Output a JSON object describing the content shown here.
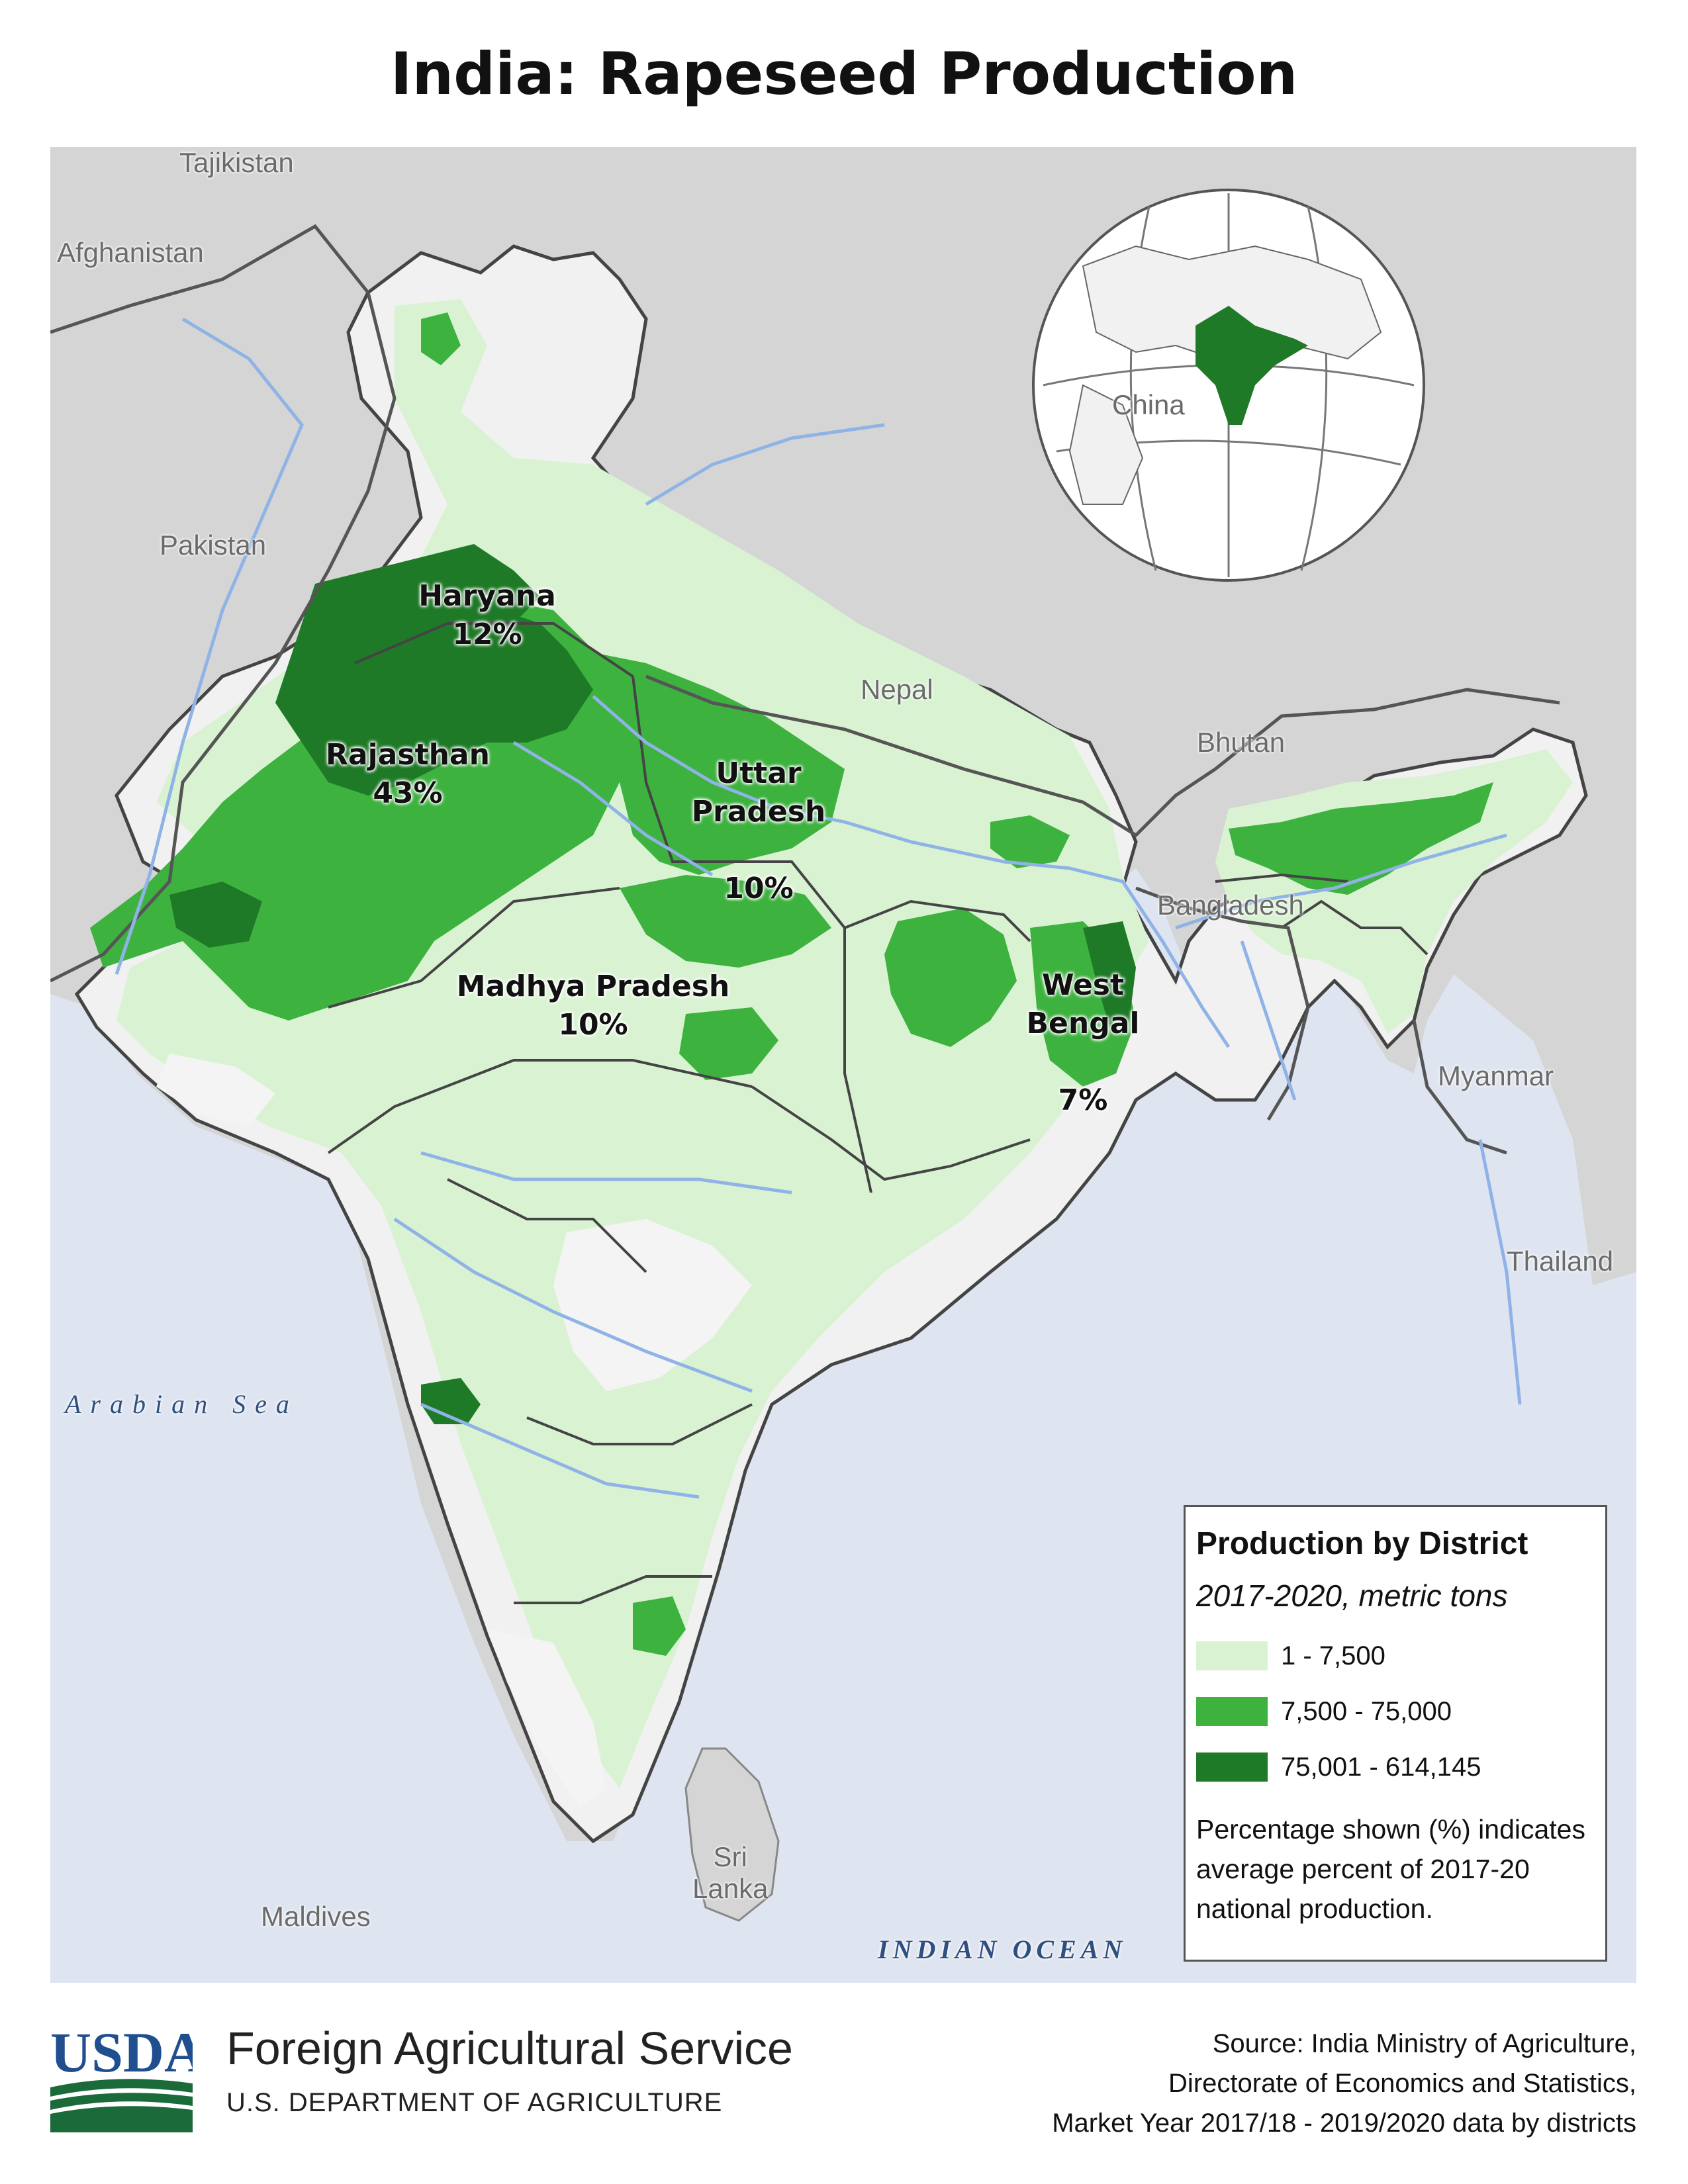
{
  "title": "India: Rapeseed Production",
  "map": {
    "countries": [
      {
        "name": "Tajikistan"
      },
      {
        "name": "Afghanistan"
      },
      {
        "name": "Pakistan"
      },
      {
        "name": "China"
      },
      {
        "name": "Nepal"
      },
      {
        "name": "Bhutan"
      },
      {
        "name": "Bangladesh"
      },
      {
        "name": "Myanmar"
      },
      {
        "name": "Thailand"
      },
      {
        "name": "Sri\nLanka"
      },
      {
        "name": "Maldives"
      }
    ],
    "seas": [
      {
        "name": "Arabian Sea"
      },
      {
        "name": "INDIAN OCEAN"
      }
    ],
    "states": [
      {
        "name": "Haryana",
        "share": "12%"
      },
      {
        "name": "Rajasthan",
        "share": "43%"
      },
      {
        "name": "Uttar\nPradesh",
        "share": "10%"
      },
      {
        "name": "Madhya Pradesh",
        "share": "10%"
      },
      {
        "name": "West\nBengal",
        "share": "7%"
      }
    ],
    "colors": {
      "water": "#dfe5f0",
      "land": "#d7d7d7",
      "india_base": "#f1f1f1",
      "class_low": "#d9f3d2",
      "class_mid": "#3db23f",
      "class_high": "#1f7a28",
      "rivers": "#8fb3e6",
      "borders": "#444444"
    }
  },
  "legend": {
    "title": "Production by District",
    "subtitle": "2017-2020, metric tons",
    "classes": [
      {
        "label": "1 - 7,500",
        "color": "#d9f3d2"
      },
      {
        "label": "7,500 - 75,000",
        "color": "#3db23f"
      },
      {
        "label": "75,001 - 614,145",
        "color": "#1f7a28"
      }
    ],
    "note": "Percentage shown (%) indicates average percent of 2017-20 national production."
  },
  "footer": {
    "logo_text": "USDA",
    "agency": "Foreign Agricultural Service",
    "department": "U.S. DEPARTMENT OF AGRICULTURE",
    "source_lines": [
      "Source: India Ministry of Agriculture,",
      "Directorate of Economics and Statistics,",
      "Market Year 2017/18 - 2019/2020 data by districts"
    ]
  }
}
